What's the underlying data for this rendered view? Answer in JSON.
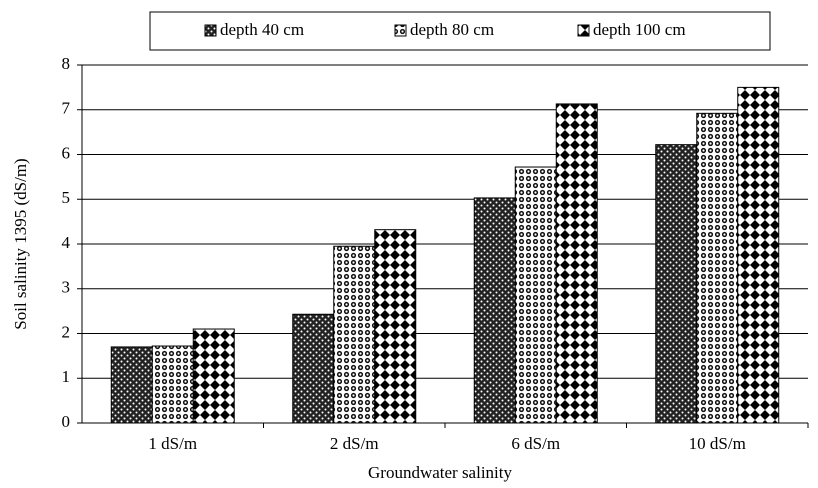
{
  "chart_data": {
    "type": "bar",
    "y_label": "Soil salinity 1395 (dS/m)",
    "x_label": "Groundwater salinity",
    "categories": [
      "1 dS/m",
      "2 dS/m",
      "6 dS/m",
      "10 dS/m"
    ],
    "series": [
      {
        "name": "depth 40 cm",
        "values": [
          1.7,
          2.43,
          5.03,
          6.22
        ]
      },
      {
        "name": "depth 80 cm",
        "values": [
          1.72,
          3.95,
          5.72,
          6.92
        ]
      },
      {
        "name": "depth 100 cm",
        "values": [
          2.1,
          4.32,
          7.13,
          7.5
        ]
      }
    ],
    "ylim": [
      0,
      8
    ],
    "yticks": [
      0,
      1,
      2,
      3,
      4,
      5,
      6,
      7,
      8
    ],
    "grid": true,
    "legend": "top"
  }
}
